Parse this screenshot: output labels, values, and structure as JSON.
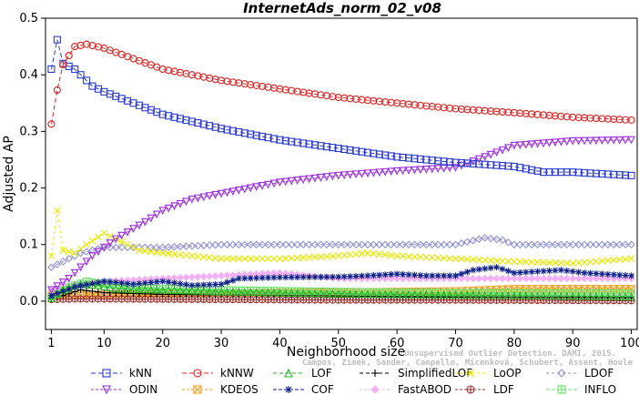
{
  "chart_data": {
    "type": "line",
    "title": "InternetAds_norm_02_v08",
    "xlabel": "Neighborhood size",
    "ylabel": "Adjusted AP",
    "xlim": [
      0,
      101
    ],
    "ylim": [
      -0.05,
      0.5
    ],
    "x_ticks": [
      1,
      10,
      20,
      30,
      40,
      50,
      60,
      70,
      80,
      90,
      100
    ],
    "y_ticks": [
      0.0,
      0.1,
      0.2,
      0.3,
      0.4,
      0.5
    ],
    "x_tick_labels": [
      "1",
      "10",
      "20",
      "30",
      "40",
      "50",
      "60",
      "70",
      "80",
      "90",
      "100"
    ],
    "y_tick_labels": [
      "0.0",
      "0.1",
      "0.2",
      "0.3",
      "0.4",
      "0.5"
    ],
    "legend_position": "bottom",
    "credit": "Campos, Zimek, Sander, Campello, Micenková, Schubert, Assent, Houle",
    "credit_line1": "Unsupervised Outlier Detection. DAMI, 2015.",
    "series": [
      {
        "name": "kNN",
        "color": "#2a3bd1",
        "marker": "square",
        "dash": "5,3",
        "knots": [
          [
            1,
            0.41
          ],
          [
            2,
            0.462
          ],
          [
            3,
            0.42
          ],
          [
            5,
            0.41
          ],
          [
            8,
            0.38
          ],
          [
            10,
            0.37
          ],
          [
            15,
            0.35
          ],
          [
            20,
            0.33
          ],
          [
            30,
            0.305
          ],
          [
            40,
            0.285
          ],
          [
            50,
            0.27
          ],
          [
            60,
            0.255
          ],
          [
            70,
            0.245
          ],
          [
            80,
            0.238
          ],
          [
            85,
            0.228
          ],
          [
            90,
            0.228
          ],
          [
            100,
            0.222
          ]
        ]
      },
      {
        "name": "kNNW",
        "color": "#e02020",
        "marker": "circle",
        "dash": "5,3",
        "knots": [
          [
            1,
            0.313
          ],
          [
            2,
            0.373
          ],
          [
            3,
            0.418
          ],
          [
            5,
            0.45
          ],
          [
            7,
            0.454
          ],
          [
            10,
            0.447
          ],
          [
            20,
            0.41
          ],
          [
            30,
            0.39
          ],
          [
            40,
            0.375
          ],
          [
            50,
            0.36
          ],
          [
            60,
            0.35
          ],
          [
            70,
            0.34
          ],
          [
            80,
            0.333
          ],
          [
            90,
            0.325
          ],
          [
            100,
            0.32
          ]
        ]
      },
      {
        "name": "LOF",
        "color": "#22b022",
        "marker": "triangle",
        "dash": "4,3",
        "knots": [
          [
            1,
            0.005
          ],
          [
            3,
            0.02
          ],
          [
            6,
            0.03
          ],
          [
            9,
            0.028
          ],
          [
            12,
            0.022
          ],
          [
            20,
            0.02
          ],
          [
            30,
            0.017
          ],
          [
            40,
            0.015
          ],
          [
            60,
            0.012
          ],
          [
            80,
            0.01
          ],
          [
            100,
            0.008
          ]
        ]
      },
      {
        "name": "SimplifiedLOF",
        "color": "#000000",
        "marker": "plus",
        "dash": "4,3",
        "knots": [
          [
            1,
            0.005
          ],
          [
            3,
            0.01
          ],
          [
            6,
            0.02
          ],
          [
            10,
            0.015
          ],
          [
            20,
            0.012
          ],
          [
            40,
            0.01
          ],
          [
            60,
            0.008
          ],
          [
            80,
            0.008
          ],
          [
            100,
            0.006
          ]
        ]
      },
      {
        "name": "LoOP",
        "color": "#e8e800",
        "marker": "x",
        "dash": "3,3",
        "knots": [
          [
            1,
            0.08
          ],
          [
            2,
            0.16
          ],
          [
            3,
            0.09
          ],
          [
            5,
            0.085
          ],
          [
            7,
            0.1
          ],
          [
            10,
            0.12
          ],
          [
            13,
            0.105
          ],
          [
            16,
            0.09
          ],
          [
            20,
            0.085
          ],
          [
            25,
            0.08
          ],
          [
            30,
            0.075
          ],
          [
            40,
            0.075
          ],
          [
            50,
            0.08
          ],
          [
            55,
            0.085
          ],
          [
            60,
            0.08
          ],
          [
            70,
            0.075
          ],
          [
            80,
            0.07
          ],
          [
            90,
            0.067
          ],
          [
            100,
            0.075
          ]
        ]
      },
      {
        "name": "LDOF",
        "color": "#9090d8",
        "marker": "diamond",
        "dash": "3,3",
        "knots": [
          [
            1,
            0.06
          ],
          [
            3,
            0.07
          ],
          [
            6,
            0.085
          ],
          [
            10,
            0.095
          ],
          [
            15,
            0.095
          ],
          [
            20,
            0.095
          ],
          [
            30,
            0.1
          ],
          [
            40,
            0.1
          ],
          [
            50,
            0.1
          ],
          [
            60,
            0.1
          ],
          [
            70,
            0.1
          ],
          [
            75,
            0.112
          ],
          [
            78,
            0.108
          ],
          [
            80,
            0.1
          ],
          [
            90,
            0.1
          ],
          [
            100,
            0.1
          ]
        ]
      },
      {
        "name": "ODIN",
        "color": "#9a2be0",
        "marker": "triangle-down",
        "dash": "3,2",
        "knots": [
          [
            1,
            0.02
          ],
          [
            4,
            0.04
          ],
          [
            8,
            0.08
          ],
          [
            12,
            0.11
          ],
          [
            17,
            0.14
          ],
          [
            20,
            0.16
          ],
          [
            25,
            0.18
          ],
          [
            30,
            0.19
          ],
          [
            40,
            0.21
          ],
          [
            50,
            0.222
          ],
          [
            60,
            0.23
          ],
          [
            70,
            0.236
          ],
          [
            75,
            0.255
          ],
          [
            80,
            0.275
          ],
          [
            90,
            0.283
          ],
          [
            100,
            0.285
          ]
        ]
      },
      {
        "name": "KDEOS",
        "color": "#f0a020",
        "marker": "square-x",
        "dash": "3,2",
        "knots": [
          [
            1,
            0.01
          ],
          [
            5,
            0.012
          ],
          [
            10,
            0.012
          ],
          [
            20,
            0.013
          ],
          [
            40,
            0.015
          ],
          [
            60,
            0.017
          ],
          [
            70,
            0.018
          ],
          [
            75,
            0.02
          ],
          [
            80,
            0.022
          ],
          [
            90,
            0.022
          ],
          [
            100,
            0.022
          ]
        ]
      },
      {
        "name": "COF",
        "color": "#0c1f8a",
        "marker": "star",
        "dash": "4,2",
        "knots": [
          [
            1,
            0.01
          ],
          [
            5,
            0.025
          ],
          [
            10,
            0.035
          ],
          [
            15,
            0.03
          ],
          [
            20,
            0.035
          ],
          [
            25,
            0.028
          ],
          [
            30,
            0.03
          ],
          [
            33,
            0.04
          ],
          [
            40,
            0.042
          ],
          [
            50,
            0.043
          ],
          [
            55,
            0.045
          ],
          [
            60,
            0.048
          ],
          [
            65,
            0.045
          ],
          [
            70,
            0.045
          ],
          [
            73,
            0.055
          ],
          [
            77,
            0.06
          ],
          [
            80,
            0.05
          ],
          [
            88,
            0.055
          ],
          [
            92,
            0.05
          ],
          [
            100,
            0.045
          ]
        ]
      },
      {
        "name": "FastABOD",
        "color": "#f5b0f5",
        "marker": "diamond-filled",
        "dash": "3,2",
        "knots": [
          [
            1,
            0.02
          ],
          [
            5,
            0.03
          ],
          [
            10,
            0.035
          ],
          [
            20,
            0.04
          ],
          [
            30,
            0.045
          ],
          [
            40,
            0.05
          ],
          [
            45,
            0.045
          ],
          [
            50,
            0.04
          ],
          [
            60,
            0.04
          ],
          [
            70,
            0.04
          ],
          [
            80,
            0.04
          ],
          [
            90,
            0.04
          ],
          [
            100,
            0.04
          ]
        ]
      },
      {
        "name": "LDF",
        "color": "#a03030",
        "marker": "circle-plus",
        "dash": "3,2",
        "knots": [
          [
            1,
            0.003
          ],
          [
            5,
            0.004
          ],
          [
            10,
            0.004
          ],
          [
            30,
            0.003
          ],
          [
            50,
            0.002
          ],
          [
            70,
            0.002
          ],
          [
            100,
            0.001
          ]
        ]
      },
      {
        "name": "INFLO",
        "color": "#66e066",
        "marker": "square-cross",
        "dash": "4,2",
        "knots": [
          [
            1,
            0.008
          ],
          [
            4,
            0.025
          ],
          [
            7,
            0.035
          ],
          [
            10,
            0.03
          ],
          [
            15,
            0.025
          ],
          [
            20,
            0.022
          ],
          [
            30,
            0.02
          ],
          [
            50,
            0.017
          ],
          [
            70,
            0.015
          ],
          [
            100,
            0.014
          ]
        ]
      }
    ]
  }
}
